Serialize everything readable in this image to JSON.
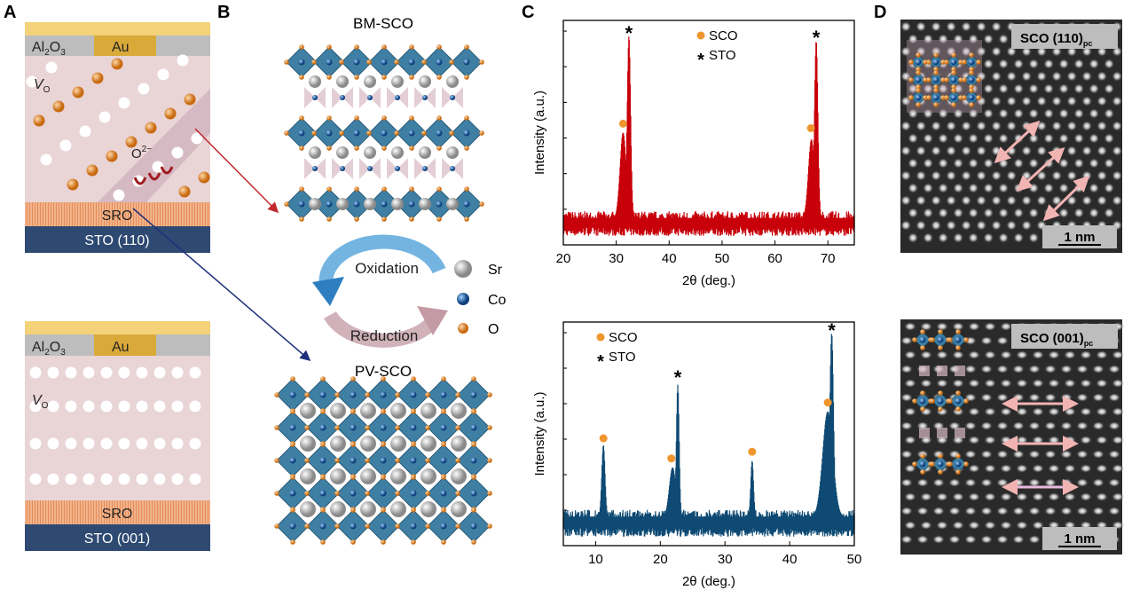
{
  "panels": {
    "a": {
      "label": "A",
      "top": {
        "al2o3": "Al",
        "al2o3_sub": "2",
        "al2o3_tail": "O",
        "al2o3_sub2": "3",
        "au": "Au",
        "vo": "V",
        "vo_sub": "O",
        "ion": "O",
        "ion_sup": "2−",
        "sro": "SRO",
        "sto": "STO (110)"
      },
      "bottom": {
        "al2o3": "Al",
        "al2o3_sub": "2",
        "al2o3_tail": "O",
        "al2o3_sub2": "3",
        "au": "Au",
        "vo": "V",
        "vo_sub": "O",
        "sro": "SRO",
        "sto": "STO (001)"
      }
    },
    "b": {
      "label": "B",
      "top_title": "BM-SCO",
      "bottom_title": "PV-SCO",
      "oxidation": "Oxidation",
      "reduction": "Reduction",
      "legend": [
        {
          "label": "Sr",
          "color": "#b8b8b8"
        },
        {
          "label": "Co",
          "color": "#1f5fa8"
        },
        {
          "label": "O",
          "color": "#e8892a"
        }
      ]
    },
    "c": {
      "label": "C"
    },
    "d": {
      "label": "D",
      "top": {
        "tag": "SCO (110)",
        "tag_sub": "pc",
        "scale": "1 nm"
      },
      "bottom": {
        "tag": "SCO (001)",
        "tag_sub": "pc",
        "scale": "1 nm"
      }
    }
  },
  "colors": {
    "red": "#c8000a",
    "blue": "#0e4a73",
    "orange": "#f0962e",
    "gold": "#d9a93a",
    "navy": "#2e4a72",
    "arrow_pink": "#f2b3b3"
  },
  "chart_data": [
    {
      "type": "line",
      "title": "",
      "xlabel": "2θ (deg.)",
      "ylabel": "Intensity (a.u.)",
      "xlim": [
        20,
        75
      ],
      "ylim": [
        0,
        1
      ],
      "yscale": "log (arbitrary, normalized)",
      "xticks": [
        20,
        30,
        40,
        50,
        60,
        70
      ],
      "color": "#c8000a",
      "legend_placement": "top-center",
      "legend": [
        {
          "marker": "dot",
          "label": "SCO"
        },
        {
          "marker": "star",
          "label": "STO"
        }
      ],
      "baseline": 0.12,
      "peaks": [
        {
          "x": 32.4,
          "y": 0.93,
          "width": 0.45,
          "marker": "STO"
        },
        {
          "x": 31.3,
          "y": 0.5,
          "width": 0.8
        },
        {
          "x": 67.8,
          "y": 0.91,
          "width": 0.45,
          "marker": "STO"
        },
        {
          "x": 66.9,
          "y": 0.47,
          "width": 0.8
        }
      ],
      "sco_markers": [
        {
          "x": 31.3,
          "y": 0.54
        },
        {
          "x": 66.8,
          "y": 0.52
        }
      ],
      "sto_markers": [
        {
          "x": 32.4,
          "y": 0.96
        },
        {
          "x": 67.8,
          "y": 0.94
        }
      ]
    },
    {
      "type": "line",
      "title": "",
      "xlabel": "2θ (deg.)",
      "ylabel": "Intensity (a.u.)",
      "xlim": [
        5,
        50
      ],
      "ylim": [
        0,
        1
      ],
      "yscale": "log (arbitrary, normalized)",
      "xticks": [
        10,
        20,
        30,
        40,
        50
      ],
      "color": "#0e4a73",
      "legend_placement": "top-left",
      "legend": [
        {
          "marker": "dot",
          "label": "SCO"
        },
        {
          "marker": "star",
          "label": "STO"
        }
      ],
      "baseline": 0.13,
      "peaks": [
        {
          "x": 11.2,
          "y": 0.45,
          "width": 0.35
        },
        {
          "x": 22.7,
          "y": 0.72,
          "width": 0.3
        },
        {
          "x": 21.9,
          "y": 0.35,
          "width": 0.7
        },
        {
          "x": 34.2,
          "y": 0.38,
          "width": 0.3
        },
        {
          "x": 46.5,
          "y": 0.95,
          "width": 0.4
        },
        {
          "x": 45.9,
          "y": 0.6,
          "width": 1.1
        }
      ],
      "sco_markers": [
        {
          "x": 11.2,
          "y": 0.48
        },
        {
          "x": 21.7,
          "y": 0.39
        },
        {
          "x": 34.2,
          "y": 0.42
        },
        {
          "x": 45.9,
          "y": 0.64
        }
      ],
      "sto_markers": [
        {
          "x": 22.7,
          "y": 0.77
        },
        {
          "x": 46.5,
          "y": 0.98
        }
      ]
    }
  ]
}
